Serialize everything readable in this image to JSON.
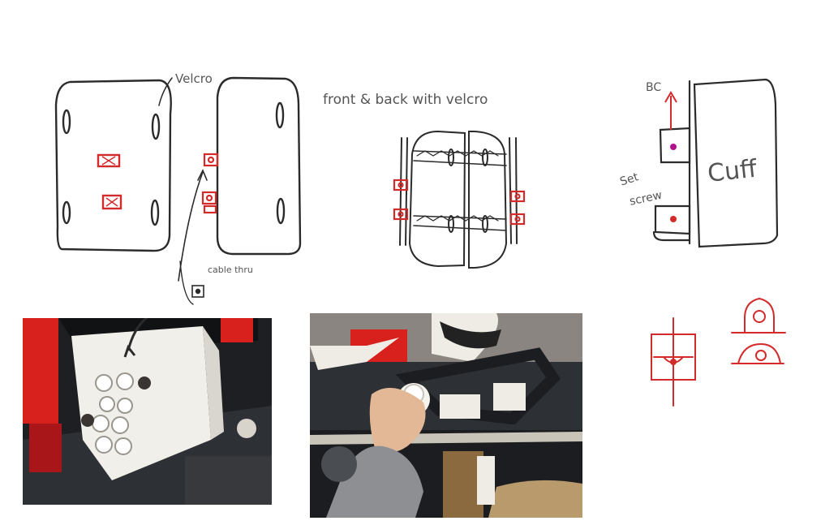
{
  "labels": {
    "velcro": "Velcro",
    "cable_thru": "cable thru",
    "front_back": "front & back with velcro",
    "bc": "BC",
    "set_screw_1": "Set",
    "set_screw_2": "screw",
    "cuff": "Cuff"
  },
  "colors": {
    "pencil": "#2b2b2b",
    "red_marker": "#d42a2a",
    "magenta": "#b0128a",
    "white_part": "#f1efea",
    "red_part": "#d8201c",
    "bench": "#2d3034"
  }
}
